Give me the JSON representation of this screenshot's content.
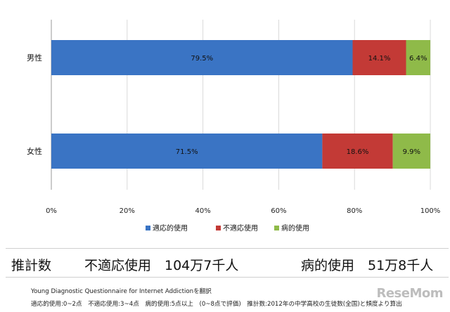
{
  "chart_data": {
    "type": "bar",
    "orientation": "horizontal",
    "stacked": true,
    "categories": [
      "男性",
      "女性"
    ],
    "series": [
      {
        "name": "適応的使用",
        "values": [
          79.5,
          71.5
        ],
        "labels": [
          "79.5%",
          "71.5%"
        ],
        "color": "#3a74c4"
      },
      {
        "name": "不適応使用",
        "values": [
          14.1,
          18.6
        ],
        "labels": [
          "14.1%",
          "18.6%"
        ],
        "color": "#c33a36"
      },
      {
        "name": "病的使用",
        "values": [
          6.4,
          9.9
        ],
        "labels": [
          "6.4%",
          "9.9%"
        ],
        "color": "#8fba49"
      }
    ],
    "xlim": [
      0,
      100
    ],
    "x_ticks": [
      "0%",
      "20%",
      "40%",
      "60%",
      "80%",
      "100%"
    ],
    "grid": true,
    "legend_position": "bottom"
  },
  "estimate": {
    "label": "推計数",
    "item1": "不適応使用　104万7千人",
    "item2": "病的使用　51万8千人"
  },
  "notes": {
    "line1": "Young Diagnostic Questionnaire for Internet Addictionを翻訳",
    "line2": "適応的使用:0~2点　不適応使用:3~4点　病的使用:5点以上　(0~8点で評価)　推計数:2012年の中学高校の生徒数(全国)と頻度より算出"
  },
  "logo": {
    "text": "ReseMom"
  }
}
